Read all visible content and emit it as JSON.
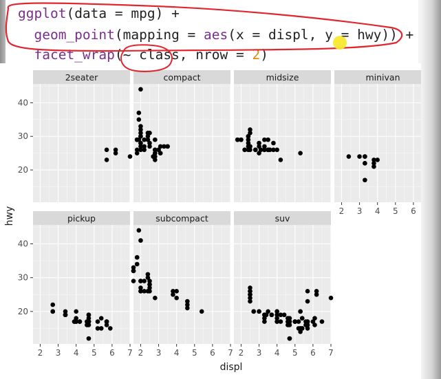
{
  "code": {
    "lines": [
      [
        {
          "t": "ggplot",
          "c": "fn"
        },
        {
          "t": "(data = mpg) +",
          "c": ""
        }
      ],
      [
        {
          "t": "  ",
          "c": ""
        },
        {
          "t": "geom_point",
          "c": "fn"
        },
        {
          "t": "(mapping = ",
          "c": ""
        },
        {
          "t": "aes",
          "c": "fn"
        },
        {
          "t": "(x = displ, y = hwy)) +",
          "c": ""
        }
      ],
      [
        {
          "t": "  ",
          "c": ""
        },
        {
          "t": "facet_wrap",
          "c": "fn"
        },
        {
          "t": "(~ class, nrow = ",
          "c": ""
        },
        {
          "t": "2",
          "c": "num"
        },
        {
          "t": ")",
          "c": ""
        }
      ]
    ]
  },
  "colors": {
    "strip_bg": "#d9d9d9",
    "panel_bg": "#ebebeb",
    "grid_major": "#ffffff",
    "point": "#000000",
    "annotation": "#e0262f",
    "highlight": "#f7e82a"
  },
  "chart_data": {
    "type": "scatter",
    "facet_by": "class",
    "nrow": 2,
    "xlabel": "displ",
    "ylabel": "hwy",
    "xlim": [
      1.6,
      7.0
    ],
    "ylim": [
      10.4,
      45.6
    ],
    "x_ticks": [
      2,
      3,
      4,
      5,
      6,
      7
    ],
    "y_ticks": [
      20,
      30,
      40
    ],
    "panels": [
      {
        "name": "2seater",
        "points": [
          [
            5.7,
            26
          ],
          [
            5.7,
            23
          ],
          [
            6.2,
            26
          ],
          [
            6.2,
            25
          ],
          [
            7.0,
            24
          ]
        ]
      },
      {
        "name": "compact",
        "points": [
          [
            1.8,
            29
          ],
          [
            1.8,
            29
          ],
          [
            2.0,
            31
          ],
          [
            2.0,
            30
          ],
          [
            2.8,
            26
          ],
          [
            2.8,
            26
          ],
          [
            3.1,
            27
          ],
          [
            1.8,
            26
          ],
          [
            1.8,
            25
          ],
          [
            2.0,
            28
          ],
          [
            2.0,
            27
          ],
          [
            2.8,
            25
          ],
          [
            2.8,
            25
          ],
          [
            3.1,
            25
          ],
          [
            3.1,
            25
          ],
          [
            2.2,
            26
          ],
          [
            2.2,
            27
          ],
          [
            2.4,
            31
          ],
          [
            2.4,
            29
          ],
          [
            3.0,
            26
          ],
          [
            3.0,
            26
          ],
          [
            3.3,
            27
          ],
          [
            2.0,
            44
          ],
          [
            1.9,
            37
          ],
          [
            1.9,
            29
          ],
          [
            1.9,
            35
          ],
          [
            2.0,
            26
          ],
          [
            2.5,
            28
          ],
          [
            2.5,
            27
          ],
          [
            2.7,
            24
          ],
          [
            2.7,
            24
          ],
          [
            2.2,
            29
          ],
          [
            2.5,
            31
          ],
          [
            2.4,
            30
          ],
          [
            2.0,
            28
          ],
          [
            3.5,
            27
          ],
          [
            3.5,
            27
          ],
          [
            2.0,
            30
          ],
          [
            2.0,
            33
          ],
          [
            2.8,
            24
          ],
          [
            2.8,
            23
          ],
          [
            1.8,
            29
          ],
          [
            2.0,
            32
          ],
          [
            2.8,
            29
          ]
        ]
      },
      {
        "name": "midsize",
        "points": [
          [
            2.8,
            26
          ],
          [
            3.1,
            26
          ],
          [
            4.2,
            23
          ],
          [
            2.4,
            27
          ],
          [
            2.4,
            30
          ],
          [
            3.1,
            26
          ],
          [
            3.5,
            29
          ],
          [
            3.6,
            26
          ],
          [
            2.4,
            30
          ],
          [
            3.0,
            28
          ],
          [
            3.3,
            26
          ],
          [
            3.3,
            29
          ],
          [
            3.8,
            26
          ],
          [
            3.8,
            28
          ],
          [
            4.0,
            26
          ],
          [
            5.3,
            25
          ],
          [
            2.5,
            27
          ],
          [
            2.5,
            26
          ],
          [
            2.5,
            31
          ],
          [
            2.5,
            32
          ],
          [
            2.5,
            27
          ],
          [
            3.5,
            26
          ],
          [
            3.5,
            26
          ],
          [
            3.0,
            28
          ],
          [
            3.3,
            27
          ],
          [
            3.3,
            26
          ],
          [
            2.2,
            26
          ],
          [
            2.2,
            26
          ],
          [
            2.4,
            26
          ],
          [
            2.4,
            28
          ],
          [
            3.0,
            27
          ],
          [
            3.0,
            25
          ],
          [
            3.5,
            26
          ],
          [
            1.8,
            29
          ],
          [
            1.8,
            29
          ],
          [
            2.0,
            29
          ],
          [
            2.0,
            29
          ],
          [
            2.8,
            26
          ],
          [
            2.8,
            26
          ],
          [
            3.6,
            26
          ],
          [
            2.4,
            29
          ]
        ]
      },
      {
        "name": "minivan",
        "points": [
          [
            2.4,
            24
          ],
          [
            3.0,
            24
          ],
          [
            3.3,
            22
          ],
          [
            3.3,
            22
          ],
          [
            3.3,
            24
          ],
          [
            3.3,
            24
          ],
          [
            3.3,
            17
          ],
          [
            3.8,
            22
          ],
          [
            3.8,
            21
          ],
          [
            3.8,
            23
          ],
          [
            4.0,
            23
          ]
        ]
      },
      {
        "name": "pickup",
        "points": [
          [
            2.7,
            20
          ],
          [
            2.7,
            22
          ],
          [
            3.4,
            19
          ],
          [
            3.4,
            19
          ],
          [
            4.0,
            17
          ],
          [
            4.7,
            17
          ],
          [
            4.7,
            17
          ],
          [
            4.7,
            19
          ],
          [
            5.7,
            17
          ],
          [
            3.9,
            17
          ],
          [
            3.9,
            17
          ],
          [
            4.7,
            17
          ],
          [
            4.7,
            16
          ],
          [
            4.7,
            17
          ],
          [
            4.7,
            12
          ],
          [
            5.2,
            17
          ],
          [
            5.2,
            15
          ],
          [
            5.7,
            16
          ],
          [
            5.9,
            15
          ],
          [
            4.2,
            17
          ],
          [
            4.2,
            17
          ],
          [
            4.6,
            17
          ],
          [
            4.6,
            16
          ],
          [
            5.4,
            15
          ],
          [
            5.4,
            18
          ],
          [
            2.7,
            20
          ],
          [
            2.7,
            20
          ],
          [
            3.4,
            19
          ],
          [
            3.4,
            20
          ],
          [
            4.0,
            20
          ],
          [
            4.0,
            18
          ],
          [
            4.0,
            17
          ],
          [
            4.7,
            19
          ],
          [
            4.7,
            18
          ],
          [
            5.7,
            17
          ]
        ]
      },
      {
        "name": "subcompact",
        "points": [
          [
            3.8,
            26
          ],
          [
            3.8,
            25
          ],
          [
            4.0,
            26
          ],
          [
            4.0,
            24
          ],
          [
            4.6,
            21
          ],
          [
            4.6,
            22
          ],
          [
            4.6,
            23
          ],
          [
            5.4,
            20
          ],
          [
            1.6,
            33
          ],
          [
            1.6,
            32
          ],
          [
            1.6,
            32
          ],
          [
            1.6,
            29
          ],
          [
            1.6,
            32
          ],
          [
            1.8,
            34
          ],
          [
            1.8,
            36
          ],
          [
            1.8,
            36
          ],
          [
            2.0,
            29
          ],
          [
            2.0,
            26
          ],
          [
            2.0,
            27
          ],
          [
            2.4,
            30
          ],
          [
            2.4,
            31
          ],
          [
            2.4,
            26
          ],
          [
            2.5,
            26
          ],
          [
            2.5,
            28
          ],
          [
            2.2,
            26
          ],
          [
            2.2,
            29
          ],
          [
            2.5,
            28
          ],
          [
            2.5,
            29
          ],
          [
            1.9,
            44
          ],
          [
            2.0,
            41
          ],
          [
            2.0,
            29
          ],
          [
            2.0,
            26
          ],
          [
            2.8,
            24
          ],
          [
            2.5,
            27
          ]
        ]
      },
      {
        "name": "suv",
        "points": [
          [
            5.3,
            20
          ],
          [
            5.3,
            15
          ],
          [
            5.3,
            20
          ],
          [
            5.7,
            17
          ],
          [
            6.0,
            17
          ],
          [
            5.7,
            26
          ],
          [
            5.7,
            23
          ],
          [
            6.2,
            26
          ],
          [
            6.2,
            25
          ],
          [
            7.0,
            24
          ],
          [
            4.7,
            17
          ],
          [
            4.7,
            17
          ],
          [
            5.2,
            15
          ],
          [
            5.2,
            17
          ],
          [
            6.5,
            17
          ],
          [
            2.5,
            27
          ],
          [
            2.5,
            25
          ],
          [
            2.5,
            23
          ],
          [
            2.5,
            26
          ],
          [
            3.0,
            20
          ],
          [
            3.3,
            19
          ],
          [
            3.3,
            19
          ],
          [
            3.5,
            20
          ],
          [
            3.7,
            19
          ],
          [
            3.7,
            19
          ],
          [
            4.0,
            20
          ],
          [
            4.0,
            18
          ],
          [
            4.0,
            19
          ],
          [
            4.2,
            17
          ],
          [
            4.6,
            17
          ],
          [
            4.6,
            16
          ],
          [
            5.0,
            17
          ],
          [
            5.4,
            15
          ],
          [
            5.4,
            15
          ],
          [
            5.4,
            18
          ],
          [
            4.0,
            20
          ],
          [
            4.0,
            19
          ],
          [
            4.6,
            18
          ],
          [
            5.0,
            17
          ],
          [
            5.3,
            15
          ],
          [
            5.3,
            14
          ],
          [
            5.7,
            15
          ],
          [
            6.1,
            16
          ],
          [
            4.7,
            12
          ],
          [
            4.7,
            12
          ],
          [
            5.7,
            16
          ],
          [
            6.1,
            18
          ],
          [
            2.7,
            20
          ],
          [
            2.7,
            20
          ],
          [
            3.4,
            19
          ],
          [
            4.0,
            17
          ],
          [
            4.7,
            18
          ],
          [
            5.6,
            17
          ],
          [
            5.6,
            16
          ],
          [
            5.4,
            18
          ],
          [
            5.0,
            17
          ],
          [
            4.4,
            19
          ],
          [
            4.7,
            16
          ],
          [
            5.7,
            17
          ],
          [
            4.2,
            19
          ],
          [
            3.0,
            20
          ],
          [
            2.5,
            26
          ],
          [
            2.5,
            24
          ],
          [
            2.5,
            25
          ],
          [
            3.3,
            18
          ],
          [
            3.3,
            17
          ],
          [
            4.0,
            17
          ]
        ]
      }
    ]
  }
}
